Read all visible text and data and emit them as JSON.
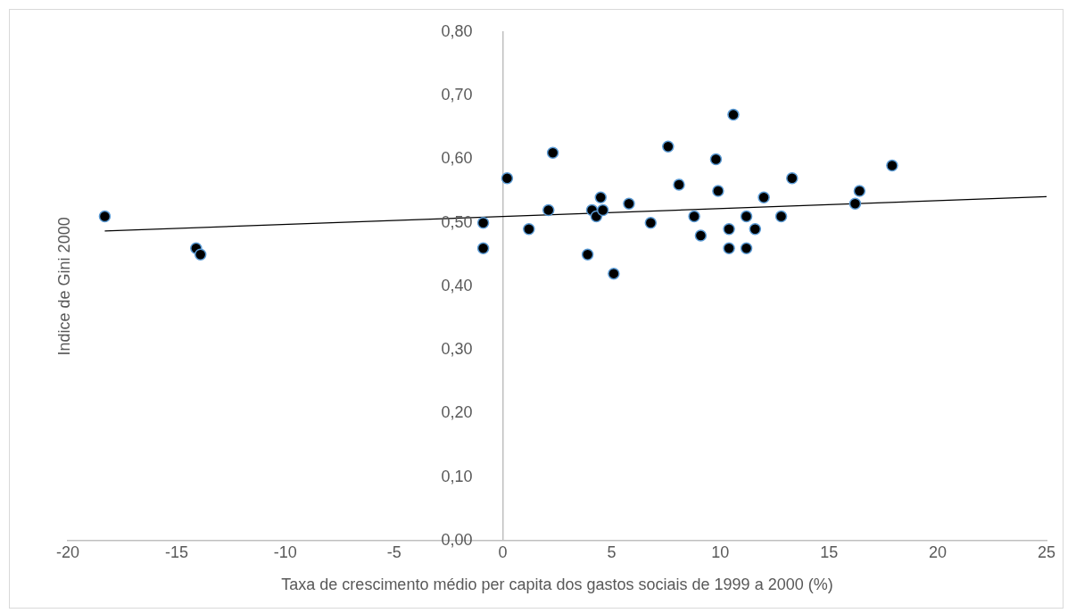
{
  "chart_data": {
    "type": "scatter",
    "xlabel": "Taxa de crescimento médio per capita dos gastos sociais de 1999 a 2000 (%)",
    "ylabel": "Indice de Gini 2000",
    "xlim": [
      -20,
      25
    ],
    "xticks": [
      -20,
      -15,
      -10,
      -5,
      0,
      5,
      10,
      15,
      20,
      25
    ],
    "ylim": [
      0,
      0.8
    ],
    "yticks": [
      {
        "value": 0,
        "label": "0,00"
      },
      {
        "value": 0.1,
        "label": "0,10"
      },
      {
        "value": 0.2,
        "label": "0,20"
      },
      {
        "value": 0.3,
        "label": "0,30"
      },
      {
        "value": 0.4,
        "label": "0,40"
      },
      {
        "value": 0.5,
        "label": "0,50"
      },
      {
        "value": 0.6,
        "label": "0,60"
      },
      {
        "value": 0.7,
        "label": "0,70"
      },
      {
        "value": 0.8,
        "label": "0,80"
      }
    ],
    "grid": false,
    "legend": false,
    "marker": "circle",
    "series": [
      {
        "type": "scatter",
        "color": "#000000",
        "x": [
          -18.3,
          -14.1,
          -13.9,
          -0.9,
          -0.9,
          0.2,
          1.2,
          2.1,
          2.3,
          3.9,
          4.1,
          4.3,
          4.5,
          4.6,
          5.1,
          5.8,
          6.8,
          7.6,
          8.1,
          8.8,
          9.1,
          9.8,
          9.9,
          10.4,
          10.4,
          10.6,
          11.2,
          11.2,
          11.6,
          12.0,
          12.8,
          13.3,
          16.2,
          16.4,
          17.9
        ],
        "values": [
          0.51,
          0.46,
          0.45,
          0.5,
          0.46,
          0.57,
          0.49,
          0.52,
          0.61,
          0.45,
          0.52,
          0.51,
          0.54,
          0.52,
          0.42,
          0.53,
          0.5,
          0.62,
          0.56,
          0.51,
          0.48,
          0.6,
          0.55,
          0.49,
          0.46,
          0.67,
          0.46,
          0.51,
          0.49,
          0.54,
          0.51,
          0.57,
          0.53,
          0.55,
          0.59
        ]
      },
      {
        "type": "line",
        "color": "#000000",
        "x": [
          -18.3,
          25
        ],
        "values": [
          0.487,
          0.541
        ],
        "marker": "none",
        "line_style": "solid"
      }
    ]
  }
}
